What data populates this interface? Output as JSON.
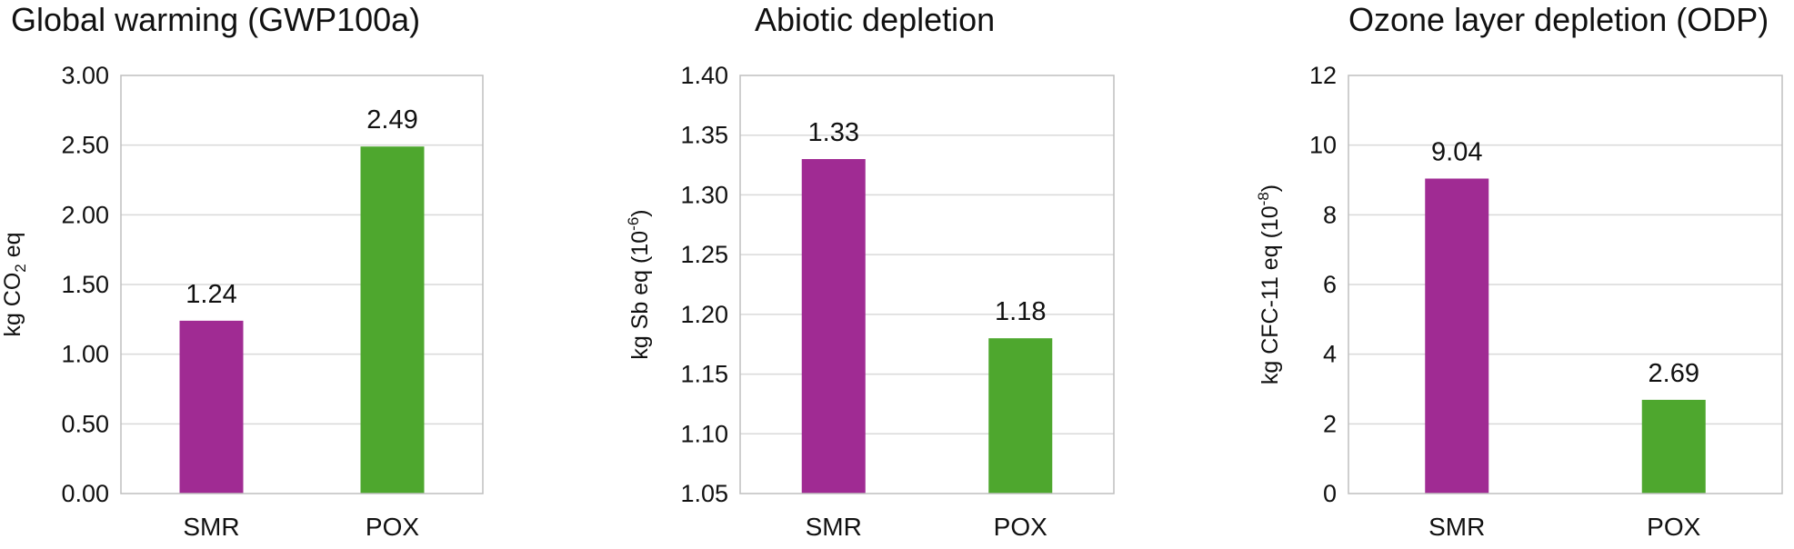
{
  "chart_data": [
    {
      "type": "bar",
      "title": "Global warming (GWP100a)",
      "ylabel": {
        "pre": "kg CO",
        "sub": "2",
        "sup": "",
        "post": " eq"
      },
      "categories": [
        "SMR",
        "POX"
      ],
      "values": [
        1.24,
        2.49
      ],
      "value_labels": [
        "1.24",
        "2.49"
      ],
      "colors": [
        "#a02b93",
        "#4ea72e"
      ],
      "ylim": [
        0,
        3.0
      ],
      "yticks": [
        "0.00",
        "0.50",
        "1.00",
        "1.50",
        "2.00",
        "2.50",
        "3.00"
      ],
      "grid": true
    },
    {
      "type": "bar",
      "title": "Abiotic depletion",
      "ylabel": {
        "pre": "kg Sb eq (10",
        "sub": "",
        "sup": "-6",
        "post": ")"
      },
      "categories": [
        "SMR",
        "POX"
      ],
      "values": [
        1.33,
        1.18
      ],
      "value_labels": [
        "1.33",
        "1.18"
      ],
      "colors": [
        "#a02b93",
        "#4ea72e"
      ],
      "ylim": [
        1.05,
        1.4
      ],
      "yticks": [
        "1.05",
        "1.10",
        "1.15",
        "1.20",
        "1.25",
        "1.30",
        "1.35",
        "1.40"
      ],
      "grid": true
    },
    {
      "type": "bar",
      "title": "Ozone layer depletion (ODP)",
      "ylabel": {
        "pre": "kg CFC-11 eq (10",
        "sub": "",
        "sup": "-8",
        "post": ")"
      },
      "categories": [
        "SMR",
        "POX"
      ],
      "values": [
        9.04,
        2.69
      ],
      "value_labels": [
        "9.04",
        "2.69"
      ],
      "colors": [
        "#a02b93",
        "#4ea72e"
      ],
      "ylim": [
        0,
        12
      ],
      "yticks": [
        "0",
        "2",
        "4",
        "6",
        "8",
        "10",
        "12"
      ],
      "grid": true
    }
  ]
}
